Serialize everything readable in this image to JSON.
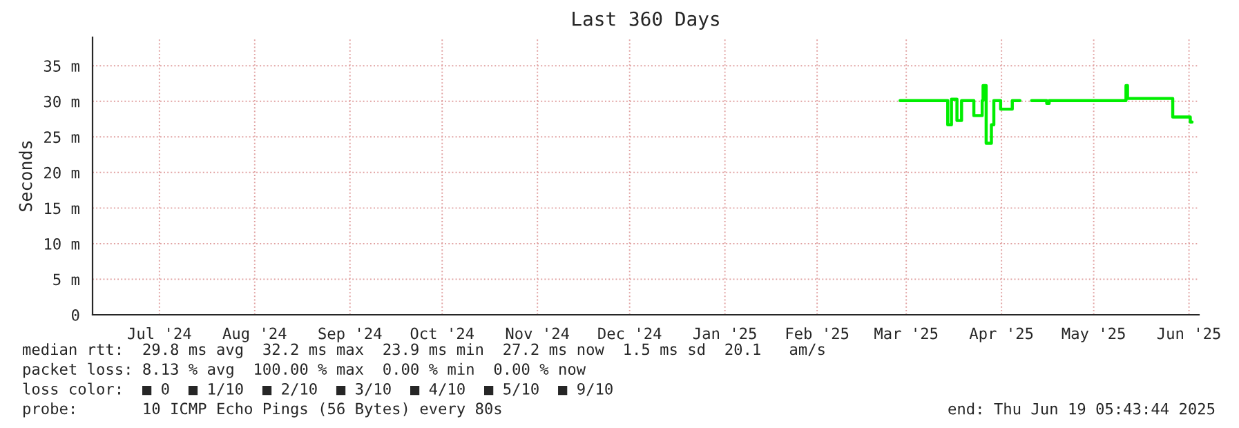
{
  "chart_data": {
    "type": "step",
    "title": "Last 360 Days",
    "ylabel": "Seconds",
    "x": [
      "2025-03-14",
      "2025-03-29T12:00",
      "2025-03-30T17:00",
      "2025-04-01T12:00",
      "2025-04-03",
      "2025-04-07",
      "2025-04-09T17:00",
      "2025-04-10",
      "2025-04-11",
      "2025-04-12T17:00",
      "2025-04-13T12:00",
      "2025-04-15T17:00",
      "2025-04-19T12:00",
      "2025-04-22",
      "2025-04-25T19:00",
      "2025-04-30T17:00",
      "2025-05-01T12:00",
      "2025-05-26T12:00",
      "2025-05-27",
      "2025-05-29T12:00",
      "2025-06-10T17:00",
      "2025-06-11",
      "2025-06-16T10:00",
      "2025-06-17"
    ],
    "series": [
      {
        "color": "#00ee00",
        "values": [
          30.1,
          26.7,
          30.3,
          27.3,
          30.1,
          28.0,
          30.1,
          32.2,
          24.1,
          26.7,
          30.1,
          28.9,
          30.1,
          null,
          30.1,
          29.7,
          30.1,
          32.2,
          30.4,
          30.4,
          27.8,
          27.8,
          27.1,
          27.1
        ]
      }
    ],
    "xlim": [
      "2024-06-24T05:43",
      "2025-06-19T05:43"
    ],
    "xticks": [
      {
        "value": "2024-07-16",
        "label": "Jul '24"
      },
      {
        "value": "2024-08-16",
        "label": "Aug '24"
      },
      {
        "value": "2024-09-16",
        "label": "Sep '24"
      },
      {
        "value": "2024-10-16",
        "label": "Oct '24"
      },
      {
        "value": "2024-11-16",
        "label": "Nov '24"
      },
      {
        "value": "2024-12-16",
        "label": "Dec '24"
      },
      {
        "value": "2025-01-16",
        "label": "Jan '25"
      },
      {
        "value": "2025-02-15",
        "label": "Feb '25"
      },
      {
        "value": "2025-03-16",
        "label": "Mar '25"
      },
      {
        "value": "2025-04-16",
        "label": "Apr '25"
      },
      {
        "value": "2025-05-16",
        "label": "May '25"
      },
      {
        "value": "2025-06-16",
        "label": "Jun '25"
      }
    ],
    "ylim": [
      0,
      39
    ],
    "yticks": [
      0,
      {
        "value": 5,
        "label": "5 m"
      },
      {
        "value": 10,
        "label": "10 m"
      },
      {
        "value": 15,
        "label": "15 m"
      },
      {
        "value": 20,
        "label": "20 m"
      },
      {
        "value": 25,
        "label": "25 m"
      },
      {
        "value": 30,
        "label": "30 m"
      },
      {
        "value": 35,
        "label": "35 m"
      }
    ],
    "grid": true,
    "annotations": [
      "median rtt:  29.8 ms avg  32.2 ms max  23.9 ms min  27.2 ms now  1.5 ms sd  20.1   am/s",
      "packet loss: 8.13 % avg  100.00 % max  0.00 % min  0.00 % now",
      "loss color:  ■ 0  ■ 1/10  ■ 2/10  ■ 3/10  ■ 4/10  ■ 5/10  ■ 9/10",
      "probe:       10 ICMP Echo Pings (56 Bytes) every 80s",
      "end: Thu Jun 19 05:43:44 2025"
    ]
  }
}
